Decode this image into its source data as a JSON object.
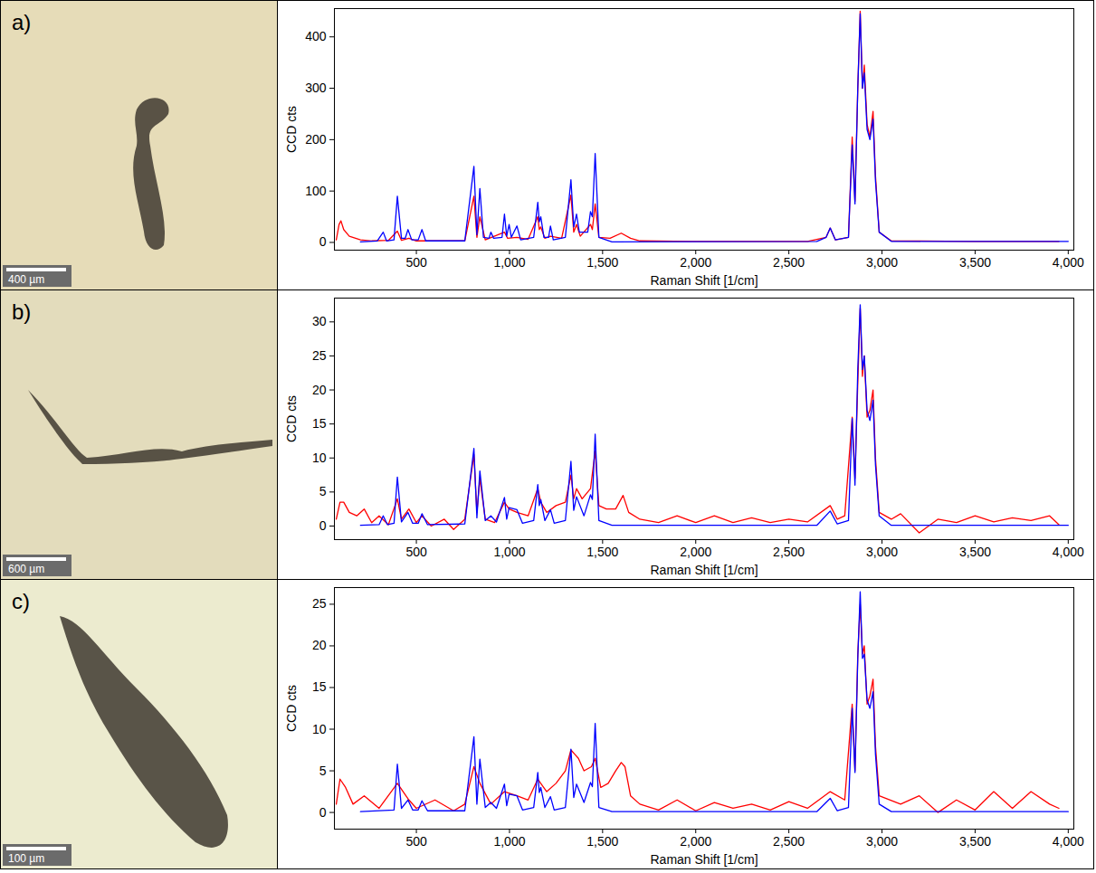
{
  "chart_data": [
    {
      "type": "line",
      "label": "a)",
      "scale_bar": "400 µm",
      "x_label": "Raman Shift [1/cm]",
      "y_label": "CCD cts",
      "xlim": [
        60,
        4030
      ],
      "xticks": [
        500,
        1000,
        1500,
        2000,
        2500,
        3000,
        3500,
        4000
      ],
      "ylim": [
        -15,
        455
      ],
      "yticks": [
        0,
        100,
        200,
        300,
        400
      ],
      "series": [
        {
          "color": "#ff0000",
          "x": [
            70,
            85,
            95,
            110,
            140,
            200,
            260,
            350,
            398,
            420,
            460,
            500,
            600,
            760,
            809,
            825,
            841,
            870,
            973,
            990,
            1040,
            1100,
            1152,
            1160,
            1168,
            1190,
            1220,
            1280,
            1330,
            1345,
            1360,
            1380,
            1435,
            1445,
            1460,
            1480,
            1540,
            1600,
            1650,
            1700,
            2000,
            2600,
            2700,
            2722,
            2750,
            2820,
            2840,
            2855,
            2870,
            2883,
            2895,
            2905,
            2920,
            2935,
            2952,
            2965,
            2985,
            3050,
            3500,
            3950
          ],
          "values": [
            5,
            35,
            42,
            25,
            12,
            5,
            3,
            4,
            22,
            4,
            8,
            3,
            3,
            3,
            90,
            10,
            50,
            5,
            20,
            8,
            10,
            6,
            50,
            25,
            30,
            8,
            12,
            8,
            92,
            20,
            35,
            12,
            35,
            25,
            75,
            10,
            8,
            18,
            8,
            3,
            2,
            2,
            10,
            28,
            5,
            10,
            205,
            80,
            300,
            450,
            300,
            345,
            230,
            205,
            255,
            130,
            20,
            3,
            2,
            2
          ]
        },
        {
          "color": "#0000ff",
          "x": [
            200,
            290,
            322,
            340,
            380,
            398,
            420,
            440,
            455,
            475,
            510,
            530,
            550,
            760,
            809,
            825,
            841,
            860,
            890,
            900,
            915,
            960,
            973,
            985,
            998,
            1010,
            1040,
            1060,
            1130,
            1152,
            1160,
            1168,
            1185,
            1210,
            1220,
            1235,
            1300,
            1330,
            1345,
            1360,
            1375,
            1420,
            1435,
            1445,
            1460,
            1480,
            1550,
            2650,
            2700,
            2722,
            2750,
            2820,
            2840,
            2855,
            2870,
            2883,
            2895,
            2905,
            2920,
            2935,
            2952,
            2965,
            2985,
            3050,
            4000
          ],
          "values": [
            1,
            3,
            20,
            3,
            5,
            90,
            8,
            8,
            25,
            5,
            5,
            25,
            3,
            3,
            148,
            15,
            105,
            10,
            8,
            20,
            8,
            10,
            55,
            12,
            35,
            10,
            32,
            5,
            10,
            78,
            40,
            50,
            10,
            10,
            32,
            5,
            10,
            122,
            30,
            55,
            20,
            20,
            60,
            50,
            173,
            10,
            1,
            2,
            10,
            28,
            5,
            10,
            190,
            75,
            300,
            445,
            300,
            330,
            220,
            200,
            240,
            120,
            20,
            2,
            2
          ]
        }
      ]
    },
    {
      "type": "line",
      "label": "b)",
      "scale_bar": "600 µm",
      "x_label": "Raman Shift [1/cm]",
      "y_label": "CCD cts",
      "xlim": [
        60,
        4030
      ],
      "xticks": [
        500,
        1000,
        1500,
        2000,
        2500,
        3000,
        3500,
        4000
      ],
      "ylim": [
        -2,
        33.5
      ],
      "yticks": [
        0,
        5,
        10,
        15,
        20,
        25,
        30
      ],
      "series": [
        {
          "color": "#ff0000",
          "x": [
            70,
            90,
            110,
            140,
            180,
            220,
            260,
            300,
            350,
            398,
            420,
            460,
            500,
            530,
            580,
            650,
            700,
            760,
            809,
            825,
            841,
            870,
            920,
            973,
            998,
            1040,
            1100,
            1152,
            1168,
            1200,
            1250,
            1300,
            1330,
            1345,
            1360,
            1390,
            1435,
            1460,
            1480,
            1520,
            1570,
            1610,
            1640,
            1700,
            1800,
            1900,
            2000,
            2100,
            2200,
            2300,
            2400,
            2500,
            2600,
            2722,
            2760,
            2800,
            2840,
            2855,
            2870,
            2883,
            2895,
            2905,
            2920,
            2935,
            2952,
            2965,
            2985,
            3050,
            3100,
            3200,
            3300,
            3400,
            3500,
            3600,
            3700,
            3800,
            3900,
            3950
          ],
          "values": [
            1,
            3.5,
            3.5,
            2,
            1.5,
            2.5,
            0.5,
            1.5,
            0.2,
            4,
            1,
            2.5,
            0.5,
            1.5,
            0,
            1,
            -0.5,
            1,
            10.5,
            2,
            7,
            1,
            0.5,
            3.5,
            2.5,
            2,
            1.5,
            5.5,
            3.5,
            2,
            3,
            3.5,
            7.5,
            4,
            5.5,
            4,
            5.5,
            11,
            3,
            2.5,
            2.5,
            4.5,
            2,
            1,
            0.5,
            1.5,
            0.5,
            1.5,
            0.5,
            1.2,
            0.5,
            1,
            0.6,
            3,
            1,
            1.5,
            16,
            7,
            21,
            32,
            22,
            25,
            16,
            17,
            20,
            10,
            2,
            1,
            1.8,
            -1,
            1,
            0.5,
            1.5,
            0.6,
            1.2,
            0.8,
            1.5,
            0.2
          ]
        },
        {
          "color": "#0000ff",
          "x": [
            200,
            300,
            322,
            345,
            380,
            398,
            420,
            455,
            480,
            510,
            530,
            560,
            760,
            809,
            825,
            841,
            870,
            900,
            930,
            973,
            985,
            998,
            1040,
            1070,
            1130,
            1152,
            1160,
            1168,
            1190,
            1220,
            1240,
            1300,
            1330,
            1345,
            1360,
            1400,
            1435,
            1445,
            1460,
            1480,
            1550,
            2650,
            2722,
            2760,
            2820,
            2840,
            2855,
            2870,
            2883,
            2895,
            2905,
            2920,
            2935,
            2952,
            2965,
            2985,
            3050,
            4000
          ],
          "values": [
            0.1,
            0.2,
            1.5,
            0.2,
            0.4,
            7.2,
            0.6,
            2,
            0.4,
            0.4,
            1.8,
            0.2,
            0.3,
            11.4,
            1.2,
            8.1,
            0.8,
            1.5,
            0.6,
            4.2,
            1,
            2.7,
            2.4,
            0.4,
            0.8,
            6.1,
            3,
            3.9,
            0.8,
            2.4,
            0.4,
            0.8,
            9.5,
            2.3,
            4.3,
            1.5,
            4.6,
            3.9,
            13.5,
            0.8,
            0.1,
            0.1,
            2.2,
            0.3,
            0.8,
            15.8,
            6,
            23,
            32.5,
            23,
            25,
            17,
            15.5,
            18.5,
            9,
            1.5,
            0.1,
            0.1
          ]
        }
      ]
    },
    {
      "type": "line",
      "label": "c)",
      "scale_bar": "100 µm",
      "x_label": "Raman Shift [1/cm]",
      "y_label": "CCD cts",
      "xlim": [
        60,
        4030
      ],
      "xticks": [
        500,
        1000,
        1500,
        2000,
        2500,
        3000,
        3500,
        4000
      ],
      "ylim": [
        -2,
        27
      ],
      "yticks": [
        0,
        5,
        10,
        15,
        20,
        25
      ],
      "series": [
        {
          "color": "#ff0000",
          "x": [
            70,
            90,
            120,
            160,
            220,
            300,
            398,
            460,
            500,
            600,
            700,
            760,
            809,
            841,
            900,
            973,
            1040,
            1100,
            1152,
            1200,
            1250,
            1300,
            1330,
            1350,
            1370,
            1400,
            1440,
            1460,
            1490,
            1530,
            1570,
            1600,
            1620,
            1650,
            1700,
            1800,
            1900,
            2000,
            2100,
            2200,
            2300,
            2400,
            2500,
            2600,
            2722,
            2800,
            2840,
            2855,
            2870,
            2883,
            2895,
            2905,
            2920,
            2935,
            2952,
            2965,
            2985,
            3100,
            3200,
            3300,
            3400,
            3500,
            3600,
            3700,
            3800,
            3900,
            3950
          ],
          "values": [
            1,
            4,
            3,
            1,
            2,
            0.5,
            3.5,
            1.5,
            0.5,
            1.5,
            0.2,
            1,
            5.5,
            3.5,
            1,
            2.5,
            2,
            1.5,
            4,
            2.5,
            3.5,
            5,
            7.5,
            7,
            6.5,
            5,
            5.5,
            6.5,
            3,
            3.5,
            5,
            6,
            5.5,
            2,
            1,
            0.3,
            1.5,
            0.2,
            1.2,
            0.5,
            1,
            0.3,
            1.3,
            0.5,
            2.5,
            1.5,
            13,
            5,
            19,
            25,
            19,
            20,
            13,
            14,
            16,
            8,
            2,
            1,
            2,
            0,
            1.5,
            0.3,
            2.5,
            0.5,
            2.5,
            1,
            0.5
          ]
        },
        {
          "color": "#0000ff",
          "x": [
            200,
            380,
            398,
            420,
            455,
            480,
            510,
            530,
            560,
            760,
            809,
            825,
            841,
            870,
            900,
            930,
            973,
            985,
            998,
            1040,
            1070,
            1130,
            1152,
            1160,
            1168,
            1190,
            1220,
            1240,
            1300,
            1330,
            1345,
            1360,
            1400,
            1435,
            1445,
            1460,
            1480,
            1550,
            2650,
            2722,
            2760,
            2820,
            2840,
            2855,
            2870,
            2883,
            2895,
            2905,
            2920,
            2935,
            2952,
            2965,
            2985,
            3050,
            4000
          ],
          "values": [
            0.1,
            0.3,
            5.8,
            0.5,
            1.5,
            0.3,
            0.3,
            1.4,
            0.2,
            0.2,
            9.1,
            1,
            6.4,
            0.6,
            1.2,
            0.5,
            3.4,
            0.8,
            2.2,
            2,
            0.3,
            0.6,
            4.8,
            2.4,
            3,
            0.6,
            1.9,
            0.3,
            0.6,
            7.6,
            1.8,
            3.4,
            1.2,
            3.6,
            3.1,
            10.7,
            0.6,
            0.1,
            0.1,
            1.7,
            0.2,
            0.6,
            12.5,
            4.8,
            18.5,
            26.5,
            18.5,
            19,
            13.5,
            12.5,
            14.5,
            7,
            1,
            0.1,
            0.1
          ]
        }
      ]
    }
  ]
}
